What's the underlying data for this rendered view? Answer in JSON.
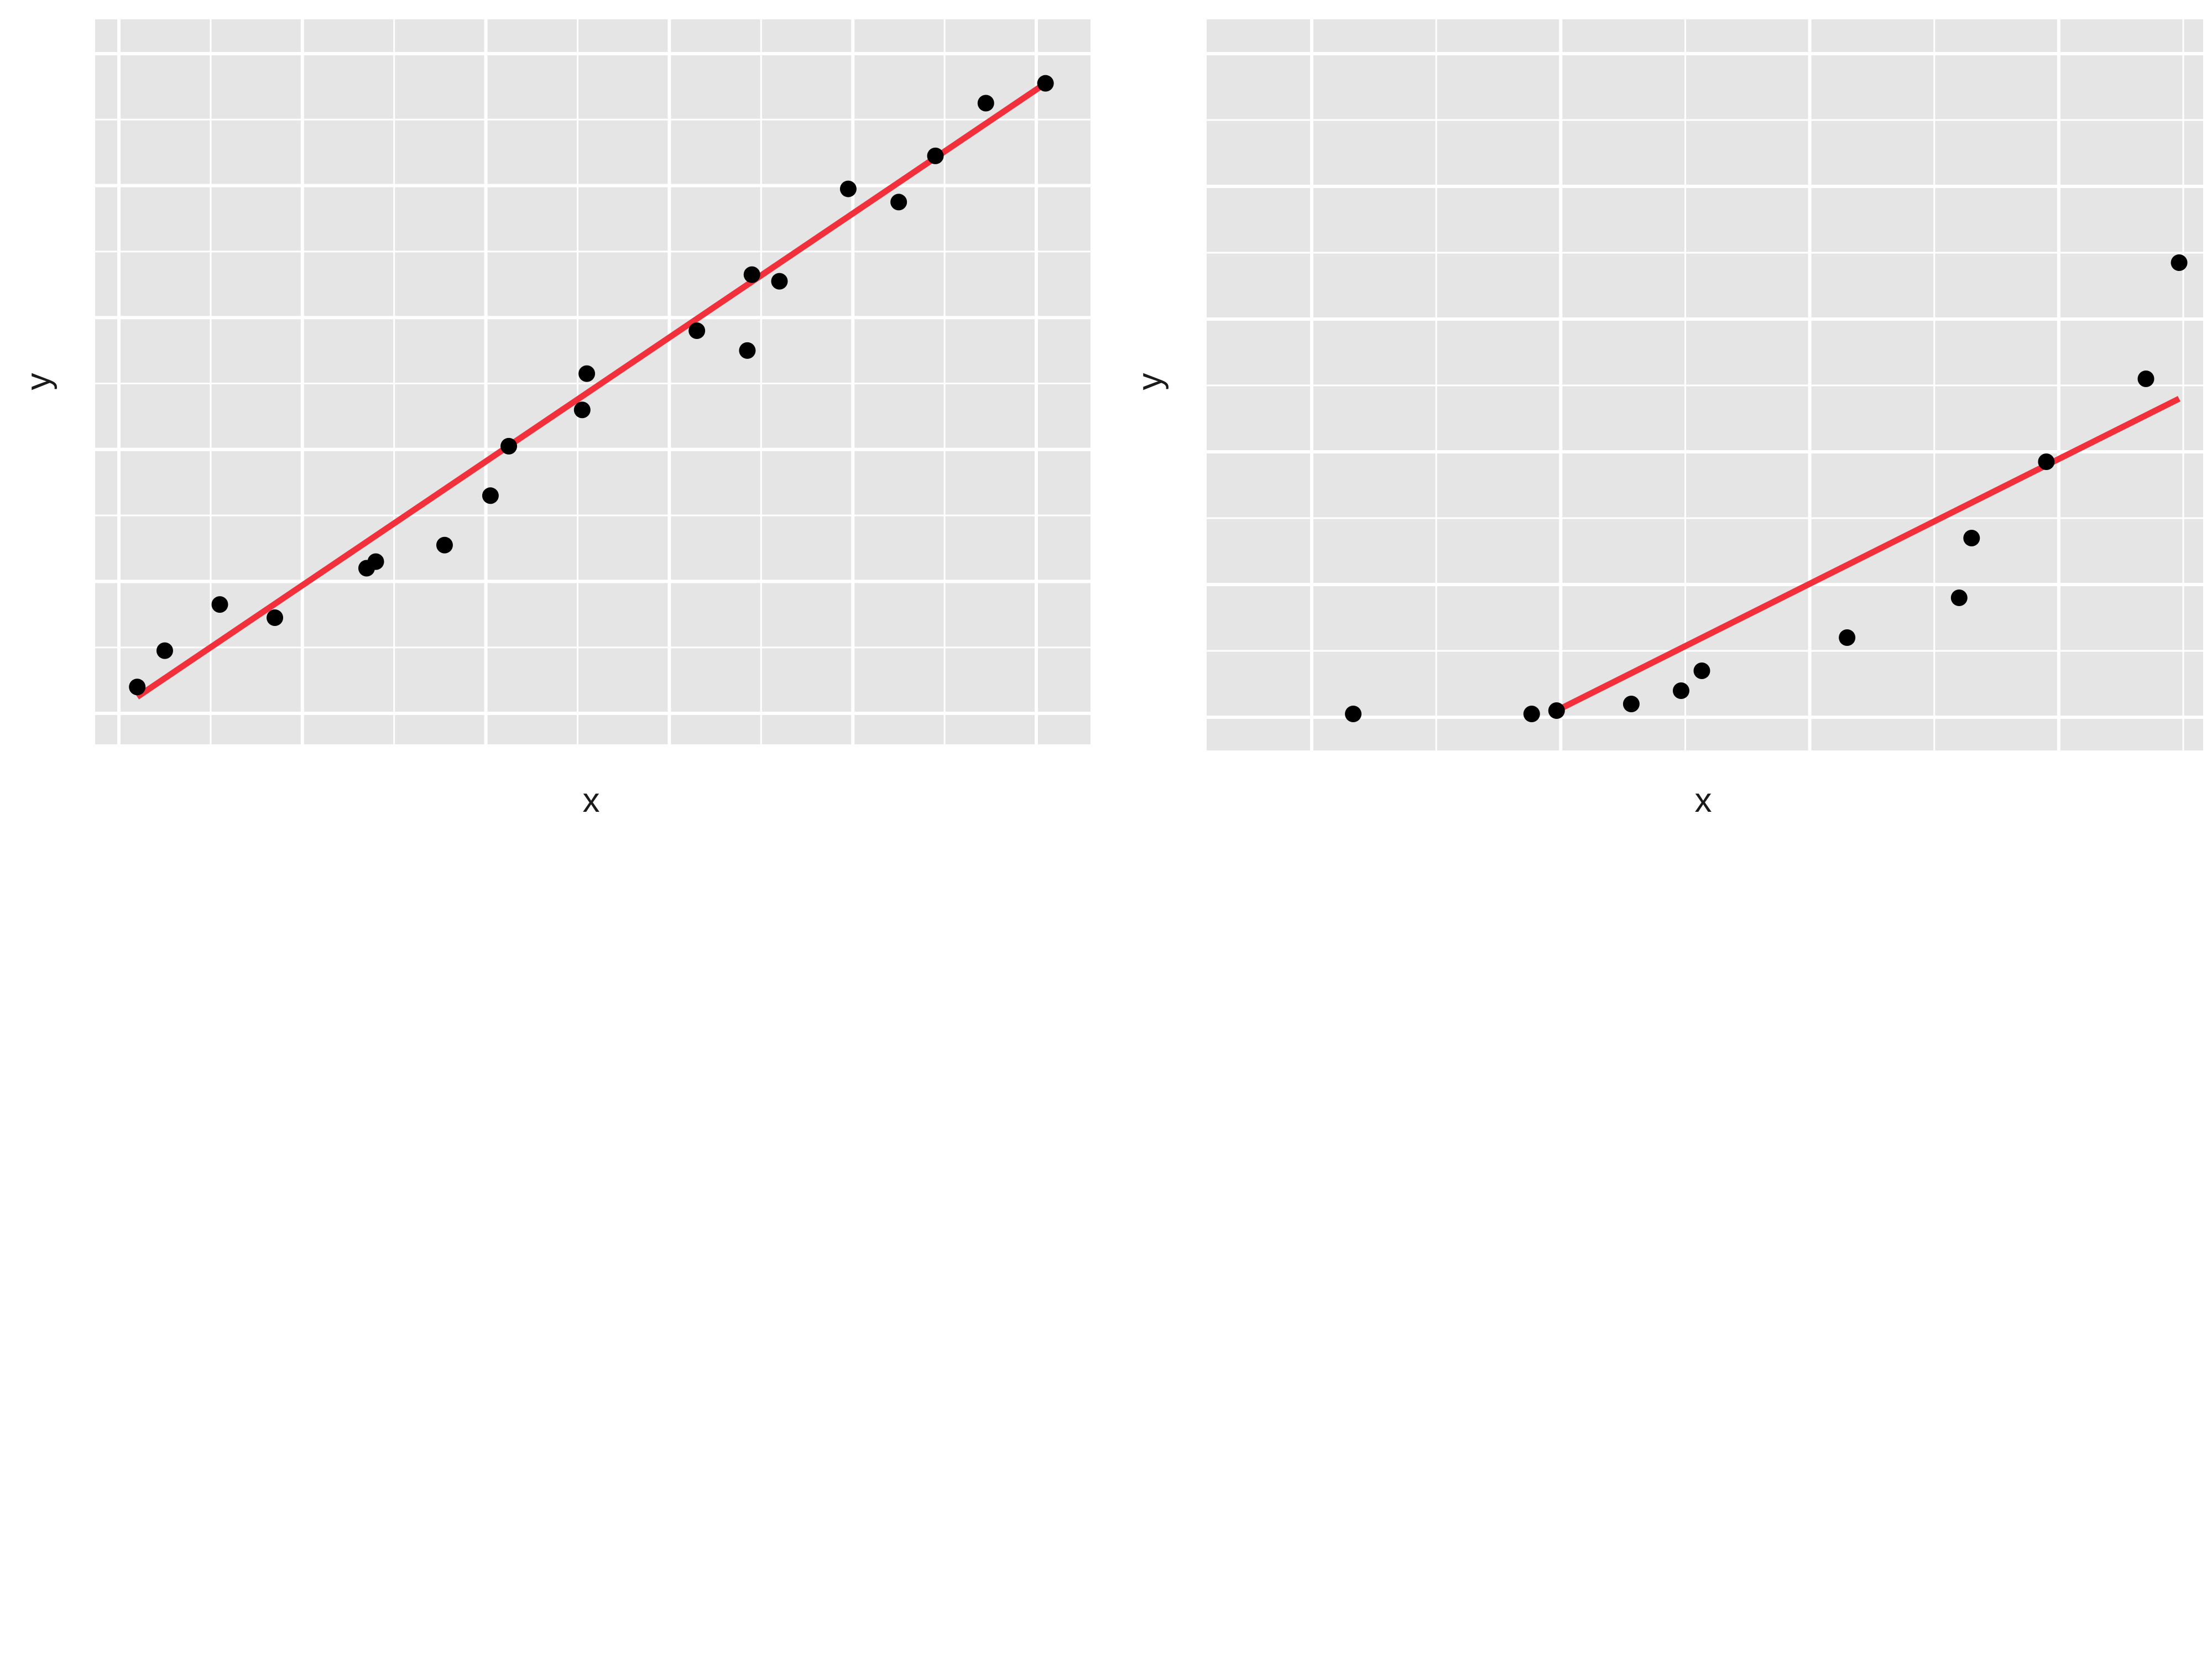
{
  "chart_data": [
    {
      "type": "scatter",
      "xlabel": "x",
      "ylabel": "y",
      "xlim": [
        0,
        20
      ],
      "ylim": [
        0,
        20
      ],
      "grid": true,
      "series": [
        {
          "points": [
            [
              0.4,
              0.8
            ],
            [
              1.0,
              1.9
            ],
            [
              2.2,
              3.3
            ],
            [
              3.4,
              2.9
            ],
            [
              5.4,
              4.4
            ],
            [
              5.6,
              4.6
            ],
            [
              7.1,
              5.1
            ],
            [
              8.1,
              6.6
            ],
            [
              8.5,
              8.1
            ],
            [
              10.1,
              9.2
            ],
            [
              10.2,
              10.3
            ],
            [
              12.6,
              11.6
            ],
            [
              13.7,
              11.0
            ],
            [
              13.8,
              13.3
            ],
            [
              14.4,
              13.1
            ],
            [
              15.9,
              15.9
            ],
            [
              17.0,
              15.5
            ],
            [
              17.8,
              16.9
            ],
            [
              18.9,
              18.5
            ],
            [
              20.2,
              19.1
            ]
          ]
        },
        {
          "type": "line",
          "fit": "linear",
          "x": [
            0.4,
            20.2
          ],
          "y": [
            0.5,
            19.1
          ],
          "color": "#f2303c"
        }
      ]
    },
    {
      "type": "scatter",
      "xlabel": "x",
      "ylabel": "y",
      "xlim": [
        0,
        20
      ],
      "ylim": [
        0,
        20
      ],
      "grid": true,
      "series": [
        {
          "points": [
            [
              1.0,
              0.1
            ],
            [
              5.3,
              0.1
            ],
            [
              5.9,
              0.2
            ],
            [
              7.7,
              0.4
            ],
            [
              8.9,
              0.8
            ],
            [
              9.4,
              1.4
            ],
            [
              12.9,
              2.4
            ],
            [
              15.6,
              3.6
            ],
            [
              15.9,
              5.4
            ],
            [
              17.7,
              7.7
            ],
            [
              20.1,
              10.2
            ],
            [
              20.9,
              13.7
            ]
          ]
        },
        {
          "type": "line",
          "fit": "linear",
          "x": [
            5.9,
            20.9
          ],
          "y": [
            0.2,
            9.6
          ],
          "color": "#f2303c"
        }
      ]
    }
  ]
}
